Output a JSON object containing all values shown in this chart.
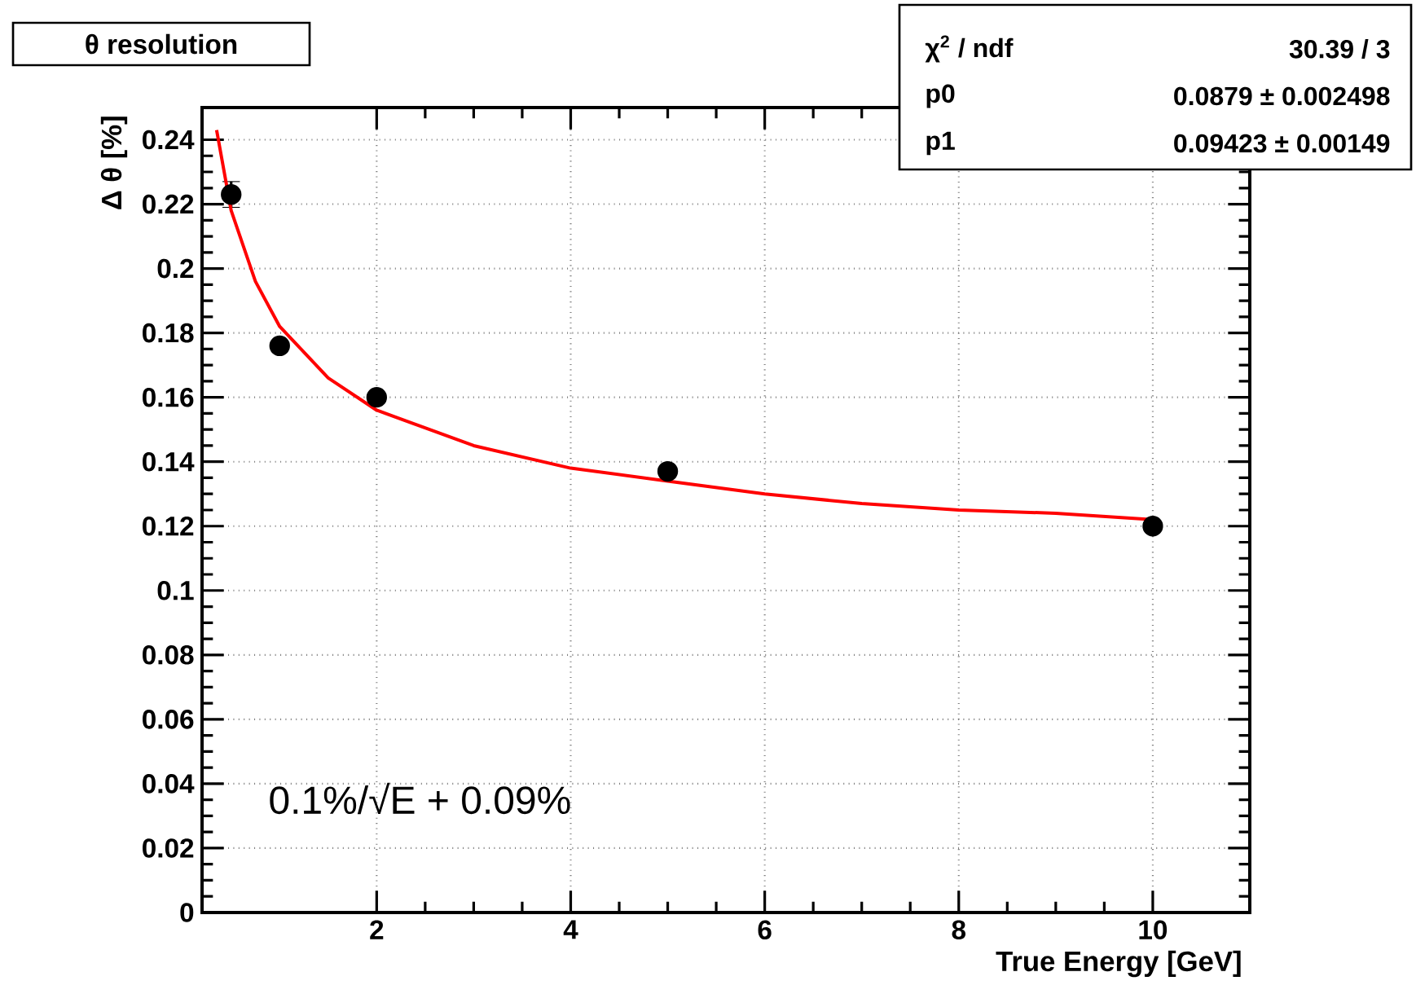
{
  "chart_data": {
    "type": "scatter",
    "title": "θ resolution",
    "xlabel": "True Energy [GeV]",
    "ylabel": "Δ θ [%]",
    "xlim": [
      0.2,
      11
    ],
    "xticks": [
      2,
      4,
      6,
      8,
      10
    ],
    "ylim": [
      0,
      0.25
    ],
    "yticks": [
      0,
      0.02,
      0.04,
      0.06,
      0.08,
      0.1,
      0.12,
      0.14,
      0.16,
      0.18,
      0.2,
      0.22,
      0.24
    ],
    "grid": true,
    "series": [
      {
        "marker": "circle",
        "color": "#000000",
        "x": [
          0.5,
          1,
          2,
          5,
          10
        ],
        "values": [
          0.223,
          0.176,
          0.16,
          0.137,
          0.12
        ],
        "errors": [
          0.004,
          null,
          null,
          null,
          null
        ]
      },
      {
        "type": "line",
        "marker": "none",
        "line_style": "solid",
        "color": "#ff0000",
        "x": [
          0.35,
          0.5,
          0.75,
          1,
          1.5,
          2,
          3,
          4,
          5,
          6,
          7,
          8,
          9,
          10
        ],
        "values": [
          0.243,
          0.218,
          0.196,
          0.182,
          0.166,
          0.156,
          0.145,
          0.138,
          0.134,
          0.13,
          0.127,
          0.125,
          0.124,
          0.122
        ]
      }
    ],
    "annotations": [
      "χ$^{2}$ / ndf",
      "30.39 / 3",
      "p0",
      "0.0879 ± 0.002498",
      "p1",
      "0.09423 ± 0.00149",
      "0.1%/√E + 0.09%"
    ]
  }
}
